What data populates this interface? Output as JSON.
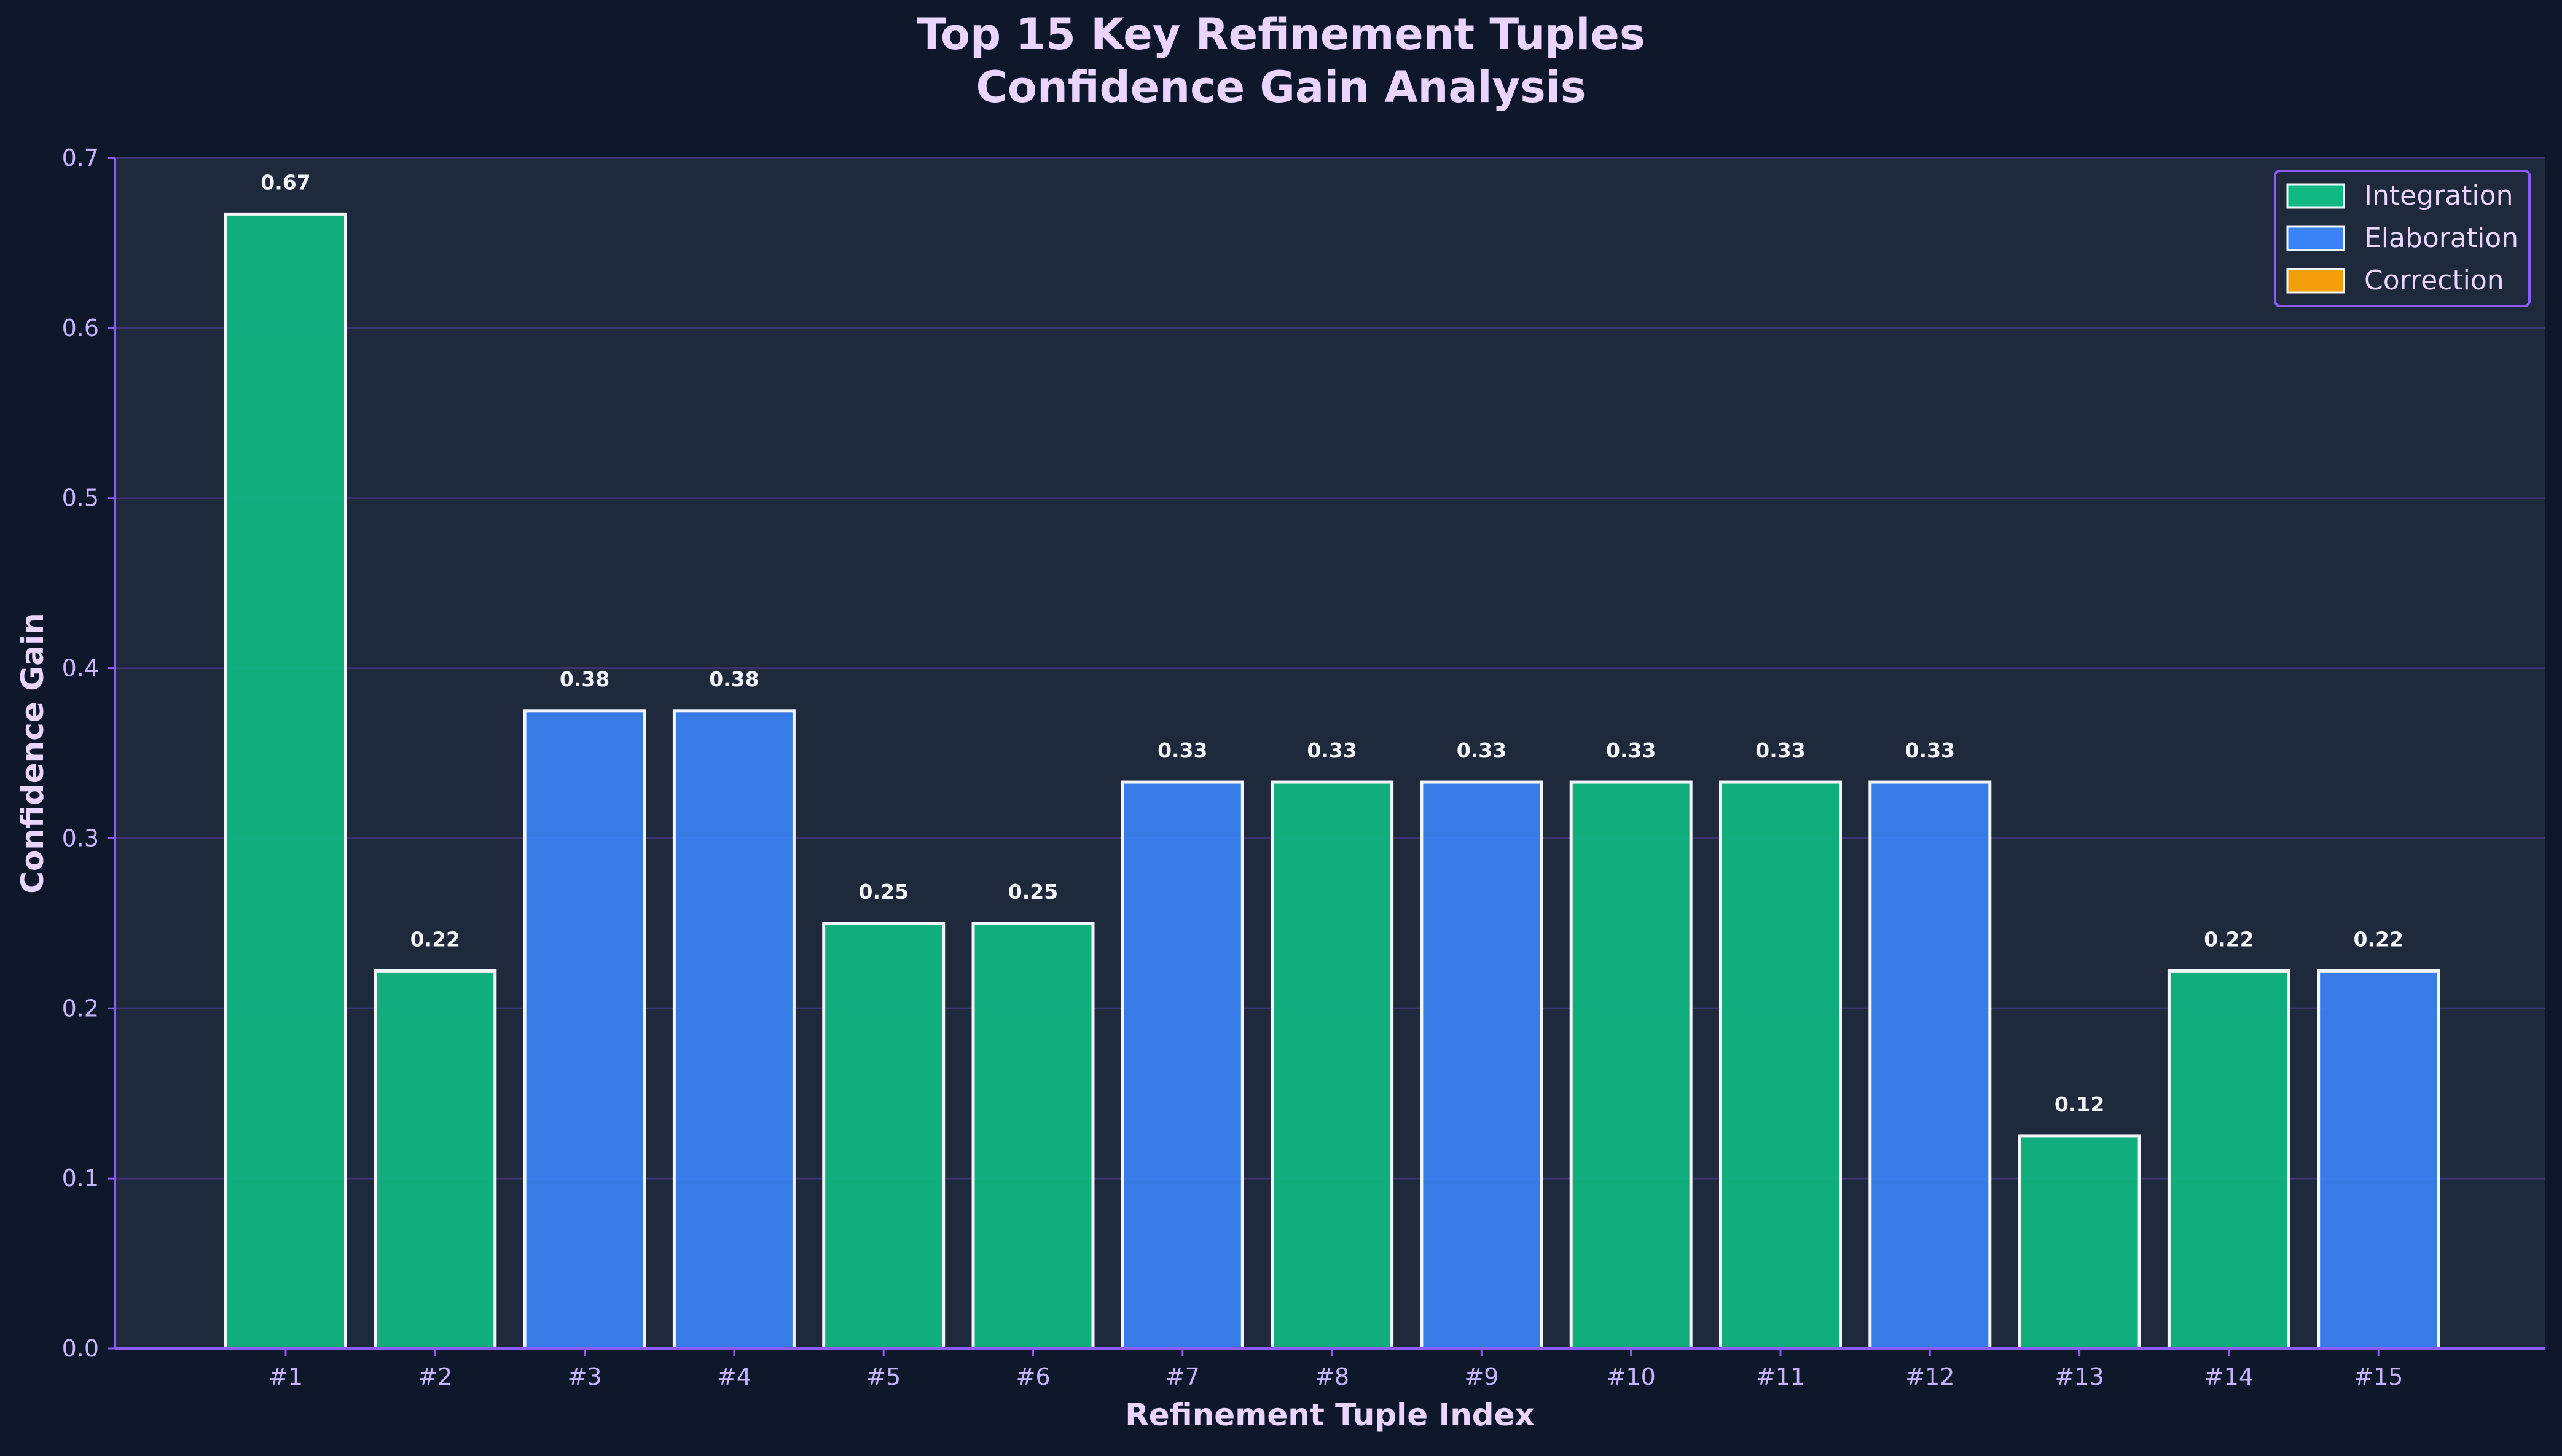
{
  "chart_data": {
    "type": "bar",
    "title": [
      "Top 15 Key Refinement Tuples",
      "Confidence Gain Analysis"
    ],
    "xlabel": "Refinement Tuple Index",
    "ylabel": "Confidence Gain",
    "ylim": [
      0,
      0.7
    ],
    "yticks": [
      "0.0",
      "0.1",
      "0.2",
      "0.3",
      "0.4",
      "0.5",
      "0.6",
      "0.7"
    ],
    "grid": true,
    "legend_position": "top-right",
    "categories": [
      "#1",
      "#2",
      "#3",
      "#4",
      "#5",
      "#6",
      "#7",
      "#8",
      "#9",
      "#10",
      "#11",
      "#12",
      "#13",
      "#14",
      "#15"
    ],
    "values": [
      0.667,
      0.222,
      0.375,
      0.375,
      0.25,
      0.25,
      0.333,
      0.333,
      0.333,
      0.333,
      0.333,
      0.333,
      0.125,
      0.222,
      0.222
    ],
    "value_labels": [
      "0.67",
      "0.22",
      "0.38",
      "0.38",
      "0.25",
      "0.25",
      "0.33",
      "0.33",
      "0.33",
      "0.33",
      "0.33",
      "0.33",
      "0.12",
      "0.22",
      "0.22"
    ],
    "bar_types": [
      "Integration",
      "Integration",
      "Elaboration",
      "Elaboration",
      "Integration",
      "Integration",
      "Elaboration",
      "Integration",
      "Elaboration",
      "Integration",
      "Integration",
      "Elaboration",
      "Integration",
      "Integration",
      "Elaboration"
    ],
    "legend": [
      {
        "name": "Integration",
        "color": "#10b981"
      },
      {
        "name": "Elaboration",
        "color": "#3b82f6"
      },
      {
        "name": "Correction",
        "color": "#f59e0b"
      }
    ]
  },
  "colors": {
    "page_background": "#0f172a",
    "plot_background": "#1e293b",
    "axis": "#8b5cf6",
    "grid": "#3b3470",
    "text": "#e9d5ff",
    "tick_text": "#c4b5fd",
    "bar_edge": "#f1f5f9"
  }
}
